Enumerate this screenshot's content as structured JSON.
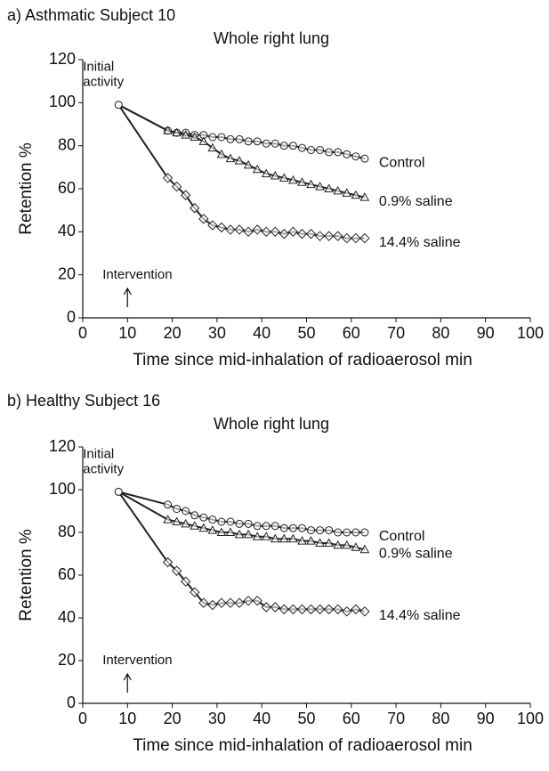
{
  "chart_data": [
    {
      "type": "scatter",
      "title": "a) Asthmatic  Subject 10",
      "subtitle": "Whole right lung",
      "x_label": "Time since mid-inhalation of radioaerosol  min",
      "y_label": "Retention  %",
      "initial_label": [
        "Initial",
        "activity"
      ],
      "intervention_label": "Intervention",
      "initial_point": [
        8,
        99
      ],
      "x": [
        19,
        21,
        23,
        25,
        27,
        29,
        31,
        33,
        35,
        37,
        39,
        41,
        43,
        45,
        47,
        49,
        51,
        53,
        55,
        57,
        59,
        61,
        63
      ],
      "series": [
        {
          "name": "Control",
          "marker": "circle",
          "color": "#222222",
          "values": [
            87,
            86,
            86,
            85,
            85,
            84,
            84,
            83,
            83,
            82,
            82,
            81,
            81,
            80,
            80,
            79,
            78,
            78,
            77,
            77,
            76,
            75,
            74
          ]
        },
        {
          "name": "0.9% saline",
          "marker": "triangle",
          "color": "#222222",
          "values": [
            87,
            86,
            85,
            84,
            82,
            79,
            76,
            74,
            73,
            71,
            69,
            67,
            66,
            65,
            64,
            63,
            62,
            61,
            60,
            59,
            58,
            57,
            56
          ]
        },
        {
          "name": "14.4% saline",
          "marker": "diamond",
          "color": "#222222",
          "values": [
            65,
            61,
            57,
            51,
            46,
            43,
            42,
            41,
            41,
            40,
            41,
            40,
            40,
            39,
            40,
            39,
            39,
            38,
            38,
            38,
            37,
            37,
            37
          ]
        }
      ],
      "xlim": [
        0,
        100
      ],
      "ylim": [
        0,
        120
      ],
      "xticks": [
        0,
        10,
        20,
        30,
        40,
        50,
        60,
        70,
        80,
        90,
        100
      ],
      "yticks": [
        0,
        20,
        40,
        60,
        80,
        100,
        120
      ]
    },
    {
      "type": "scatter",
      "title": "b) Healthy  Subject 16",
      "subtitle": "Whole right lung",
      "x_label": "Time since mid-inhalation of radioaerosol  min",
      "y_label": "Retention  %",
      "initial_label": [
        "Initial",
        "activity"
      ],
      "intervention_label": "Intervention",
      "initial_point": [
        8,
        99
      ],
      "x": [
        19,
        21,
        23,
        25,
        27,
        29,
        31,
        33,
        35,
        37,
        39,
        41,
        43,
        45,
        47,
        49,
        51,
        53,
        55,
        57,
        59,
        61,
        63
      ],
      "series": [
        {
          "name": "Control",
          "marker": "circle",
          "color": "#222222",
          "values": [
            93,
            91,
            90,
            88,
            87,
            86,
            85,
            85,
            84,
            84,
            83,
            83,
            83,
            82,
            82,
            82,
            81,
            81,
            81,
            80,
            80,
            80,
            80
          ]
        },
        {
          "name": "0.9% saline",
          "marker": "triangle",
          "color": "#222222",
          "values": [
            86,
            85,
            84,
            83,
            82,
            81,
            80,
            80,
            79,
            79,
            78,
            78,
            77,
            77,
            77,
            76,
            76,
            75,
            75,
            74,
            74,
            73,
            72
          ]
        },
        {
          "name": "14.4% saline",
          "marker": "diamond",
          "color": "#222222",
          "values": [
            66,
            62,
            57,
            52,
            47,
            46,
            47,
            47,
            47,
            48,
            48,
            45,
            45,
            44,
            44,
            44,
            44,
            44,
            44,
            44,
            43,
            44,
            43
          ]
        }
      ],
      "xlim": [
        0,
        100
      ],
      "ylim": [
        0,
        120
      ],
      "xticks": [
        0,
        10,
        20,
        30,
        40,
        50,
        60,
        70,
        80,
        90,
        100
      ],
      "yticks": [
        0,
        20,
        40,
        60,
        80,
        100,
        120
      ]
    }
  ]
}
